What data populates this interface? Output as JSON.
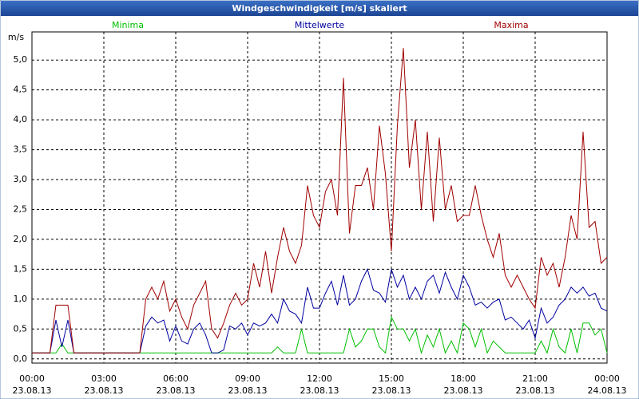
{
  "chart_data": {
    "type": "line",
    "title": "Windgeschwindigkeit [m/s] skaliert",
    "y_label": "m/s",
    "x": [
      0,
      0.25,
      0.5,
      0.75,
      1,
      1.25,
      1.5,
      1.75,
      2,
      2.25,
      2.5,
      2.75,
      3,
      3.25,
      3.5,
      3.75,
      4,
      4.25,
      4.5,
      4.75,
      5,
      5.25,
      5.5,
      5.75,
      6,
      6.25,
      6.5,
      6.75,
      7,
      7.25,
      7.5,
      7.75,
      8,
      8.25,
      8.5,
      8.75,
      9,
      9.25,
      9.5,
      9.75,
      10,
      10.25,
      10.5,
      10.75,
      11,
      11.25,
      11.5,
      11.75,
      12,
      12.25,
      12.5,
      12.75,
      13,
      13.25,
      13.5,
      13.75,
      14,
      14.25,
      14.5,
      14.75,
      15,
      15.25,
      15.5,
      15.75,
      16,
      16.25,
      16.5,
      16.75,
      17,
      17.25,
      17.5,
      17.75,
      18,
      18.25,
      18.5,
      18.75,
      19,
      19.25,
      19.5,
      19.75,
      20,
      20.25,
      20.5,
      20.75,
      21,
      21.25,
      21.5,
      21.75,
      22,
      22.25,
      22.5,
      22.75,
      23,
      23.25,
      23.5,
      23.75,
      24
    ],
    "series": [
      {
        "name": "Minima",
        "color": "#00c000",
        "values": [
          0.1,
          0.1,
          0.1,
          0.1,
          0.1,
          0.25,
          0.1,
          0.1,
          0.1,
          0.1,
          0.1,
          0.1,
          0.1,
          0.1,
          0.1,
          0.1,
          0.1,
          0.1,
          0.1,
          0.1,
          0.1,
          0.1,
          0.1,
          0.1,
          0.1,
          0.1,
          0.1,
          0.1,
          0.1,
          0.1,
          0.1,
          0.1,
          0.1,
          0.1,
          0.1,
          0.1,
          0.1,
          0.1,
          0.1,
          0.1,
          0.1,
          0.2,
          0.1,
          0.1,
          0.1,
          0.5,
          0.1,
          0.1,
          0.1,
          0.1,
          0.1,
          0.1,
          0.1,
          0.5,
          0.2,
          0.3,
          0.5,
          0.5,
          0.2,
          0.1,
          0.7,
          0.5,
          0.5,
          0.3,
          0.5,
          0.1,
          0.4,
          0.2,
          0.5,
          0.1,
          0.3,
          0.1,
          0.6,
          0.5,
          0.2,
          0.5,
          0.1,
          0.3,
          0.2,
          0.1,
          0.1,
          0.1,
          0.1,
          0.1,
          0.1,
          0.3,
          0.1,
          0.5,
          0.2,
          0.1,
          0.5,
          0.1,
          0.6,
          0.6,
          0.4,
          0.5,
          0.1
        ]
      },
      {
        "name": "Mittelwerte",
        "color": "#0000a0",
        "values": [
          0.1,
          0.1,
          0.1,
          0.1,
          0.65,
          0.2,
          0.65,
          0.1,
          0.1,
          0.1,
          0.1,
          0.1,
          0.1,
          0.1,
          0.1,
          0.1,
          0.1,
          0.1,
          0.1,
          0.55,
          0.7,
          0.6,
          0.65,
          0.3,
          0.55,
          0.3,
          0.25,
          0.5,
          0.6,
          0.4,
          0.1,
          0.1,
          0.15,
          0.55,
          0.5,
          0.6,
          0.4,
          0.6,
          0.55,
          0.6,
          0.75,
          0.6,
          1.0,
          0.8,
          0.75,
          0.6,
          1.2,
          0.85,
          0.85,
          1.1,
          1.3,
          0.9,
          1.4,
          0.9,
          1.0,
          1.3,
          1.5,
          1.15,
          1.1,
          0.95,
          1.5,
          1.2,
          1.4,
          1.0,
          1.2,
          1.0,
          1.3,
          1.4,
          1.1,
          1.45,
          1.2,
          1.0,
          1.4,
          1.2,
          0.9,
          0.95,
          0.85,
          0.95,
          1.0,
          0.65,
          0.7,
          0.6,
          0.5,
          0.65,
          0.35,
          0.85,
          0.6,
          0.7,
          0.9,
          1.0,
          1.2,
          1.1,
          1.2,
          1.05,
          1.1,
          0.85,
          0.8
        ]
      },
      {
        "name": "Maxima",
        "color": "#a00000",
        "values": [
          0.1,
          0.1,
          0.1,
          0.1,
          0.9,
          0.9,
          0.9,
          0.1,
          0.1,
          0.1,
          0.1,
          0.1,
          0.1,
          0.1,
          0.1,
          0.1,
          0.1,
          0.1,
          0.1,
          1.0,
          1.2,
          1.0,
          1.3,
          0.8,
          1.0,
          0.7,
          0.5,
          0.9,
          1.1,
          1.3,
          0.5,
          0.35,
          0.6,
          0.9,
          1.1,
          0.9,
          1.0,
          1.6,
          1.2,
          1.8,
          1.1,
          1.7,
          2.2,
          1.8,
          1.6,
          1.9,
          2.9,
          2.4,
          2.2,
          2.8,
          3.0,
          2.4,
          4.7,
          2.1,
          2.9,
          2.9,
          3.2,
          2.5,
          3.9,
          3.1,
          1.8,
          3.9,
          5.2,
          3.2,
          4.0,
          2.5,
          3.8,
          2.3,
          3.7,
          2.5,
          2.9,
          2.3,
          2.4,
          2.4,
          2.9,
          2.4,
          2.0,
          1.7,
          2.1,
          1.4,
          1.2,
          1.4,
          1.2,
          1.0,
          0.85,
          1.7,
          1.4,
          1.6,
          1.2,
          1.7,
          2.4,
          2.0,
          3.8,
          2.2,
          2.3,
          1.6,
          1.7
        ]
      }
    ],
    "xlim": [
      0,
      24
    ],
    "xticks": [
      {
        "value": 0,
        "label": "00:00",
        "date": "23.08.13"
      },
      {
        "value": 3,
        "label": "03:00",
        "date": "23.08.13"
      },
      {
        "value": 6,
        "label": "06:00",
        "date": "23.08.13"
      },
      {
        "value": 9,
        "label": "09:00",
        "date": "23.08.13"
      },
      {
        "value": 12,
        "label": "12:00",
        "date": "23.08.13"
      },
      {
        "value": 15,
        "label": "15:00",
        "date": "23.08.13"
      },
      {
        "value": 18,
        "label": "18:00",
        "date": "23.08.13"
      },
      {
        "value": 21,
        "label": "21:00",
        "date": "23.08.13"
      },
      {
        "value": 24,
        "label": "00:00",
        "date": "24.08.13"
      }
    ],
    "ylim": [
      -0.07,
      5.47
    ],
    "yticks": [
      {
        "value": 0,
        "label": "0,0"
      },
      {
        "value": 0.5,
        "label": "0,5"
      },
      {
        "value": 1,
        "label": "1,0"
      },
      {
        "value": 1.5,
        "label": "1,5"
      },
      {
        "value": 2,
        "label": "2,0"
      },
      {
        "value": 2.5,
        "label": "2,5"
      },
      {
        "value": 3,
        "label": "3,0"
      },
      {
        "value": 3.5,
        "label": "3,5"
      },
      {
        "value": 4,
        "label": "4,0"
      },
      {
        "value": 4.5,
        "label": "4,5"
      },
      {
        "value": 5,
        "label": "5,0"
      }
    ],
    "grid": true
  }
}
